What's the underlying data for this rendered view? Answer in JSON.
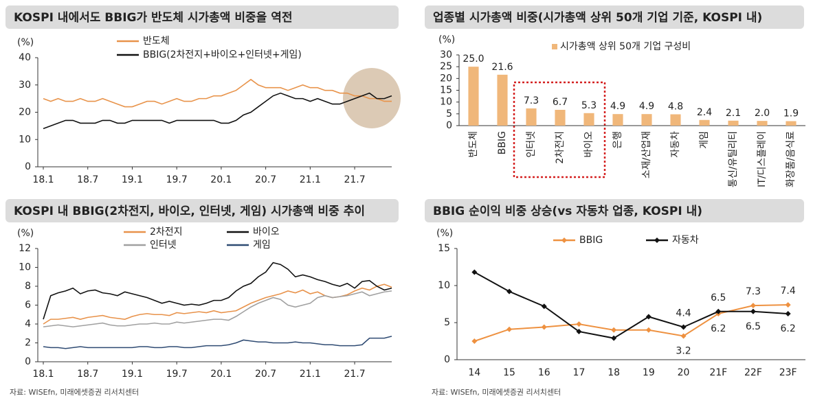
{
  "chart_data": [
    {
      "type": "line",
      "title": "KOSPI 내에서도 BBIG가 반도체 시가총액 비중을 역전",
      "y_unit": "(%)",
      "x": [
        "18.1",
        "18.2",
        "18.3",
        "18.4",
        "18.5",
        "18.6",
        "18.7",
        "18.8",
        "18.9",
        "18.10",
        "18.11",
        "18.12",
        "19.1",
        "19.2",
        "19.3",
        "19.4",
        "19.5",
        "19.6",
        "19.7",
        "19.8",
        "19.9",
        "19.10",
        "19.11",
        "19.12",
        "20.1",
        "20.2",
        "20.3",
        "20.4",
        "20.5",
        "20.6",
        "20.7",
        "20.8",
        "20.9",
        "20.10",
        "20.11",
        "20.12",
        "21.1",
        "21.2",
        "21.3",
        "21.4",
        "21.5",
        "21.6",
        "21.7",
        "21.8",
        "21.9",
        "21.10",
        "21.11",
        "21.12"
      ],
      "xticks": [
        "18.1",
        "18.7",
        "19.1",
        "19.7",
        "20.1",
        "20.7",
        "21.1",
        "21.7"
      ],
      "ylim": [
        0,
        40
      ],
      "yticks": [
        0,
        10,
        20,
        30,
        40
      ],
      "series": [
        {
          "name": "반도체",
          "color": "#e8934a",
          "values": [
            25,
            24,
            25,
            24,
            24,
            25,
            24,
            24,
            25,
            24,
            23,
            22,
            22,
            23,
            24,
            24,
            23,
            24,
            25,
            24,
            24,
            25,
            25,
            26,
            26,
            27,
            28,
            30,
            32,
            30,
            29,
            29,
            29,
            28,
            29,
            30,
            29,
            29,
            28,
            28,
            27,
            27,
            26,
            26,
            25,
            25,
            24,
            24
          ]
        },
        {
          "name": "BBIG(2차전지+바이오+인터넷+게임)",
          "color": "#111111",
          "values": [
            14,
            15,
            16,
            17,
            17,
            16,
            16,
            16,
            17,
            17,
            16,
            16,
            17,
            17,
            17,
            17,
            17,
            16,
            17,
            17,
            17,
            17,
            17,
            17,
            16,
            16,
            17,
            19,
            20,
            22,
            24,
            26,
            27,
            26,
            25,
            25,
            24,
            25,
            24,
            23,
            23,
            24,
            25,
            26,
            27,
            25,
            25,
            26
          ]
        }
      ]
    },
    {
      "type": "bar",
      "title": "업종별 시가총액 비중(시가총액 상위 50개 기업 기준, KOSPI 내)",
      "y_unit": "(%)",
      "categories": [
        "반도체",
        "BBIG",
        "인터넷",
        "2차전지",
        "바이오",
        "은행",
        "소재/산업재",
        "자동차",
        "게임",
        "통신/유틸리티",
        "IT/디스플레이",
        "화장품/음식료"
      ],
      "ylim": [
        0,
        30
      ],
      "yticks": [
        0,
        5,
        10,
        15,
        20,
        25,
        30
      ],
      "series": [
        {
          "name": "시가총액 상위 50개 기업 구성비",
          "color": "#f0b77a",
          "values": [
            25.0,
            21.6,
            7.3,
            6.7,
            5.3,
            4.9,
            4.9,
            4.8,
            2.4,
            2.1,
            2.0,
            1.9
          ],
          "value_labels": [
            "25.0",
            "21.6",
            "7.3",
            "6.7",
            "5.3",
            "4.9",
            "4.9",
            "4.8",
            "2.4",
            "2.1",
            "2.0",
            "1.9"
          ]
        }
      ]
    },
    {
      "type": "line",
      "title": "KOSPI 내 BBIG(2차전지, 바이오, 인터넷, 게임) 시가총액 비중 추이",
      "y_unit": "(%)",
      "source": "자료: WISEfn, 미래에셋증권 리서치센터",
      "x": [
        "18.1",
        "18.2",
        "18.3",
        "18.4",
        "18.5",
        "18.6",
        "18.7",
        "18.8",
        "18.9",
        "18.10",
        "18.11",
        "18.12",
        "19.1",
        "19.2",
        "19.3",
        "19.4",
        "19.5",
        "19.6",
        "19.7",
        "19.8",
        "19.9",
        "19.10",
        "19.11",
        "19.12",
        "20.1",
        "20.2",
        "20.3",
        "20.4",
        "20.5",
        "20.6",
        "20.7",
        "20.8",
        "20.9",
        "20.10",
        "20.11",
        "20.12",
        "21.1",
        "21.2",
        "21.3",
        "21.4",
        "21.5",
        "21.6",
        "21.7",
        "21.8",
        "21.9",
        "21.10",
        "21.11",
        "21.12"
      ],
      "xticks": [
        "18.1",
        "18.7",
        "19.1",
        "19.7",
        "20.1",
        "20.7",
        "21.1",
        "21.7"
      ],
      "ylim": [
        0,
        12
      ],
      "yticks": [
        0,
        2,
        4,
        6,
        8,
        10,
        12
      ],
      "series": [
        {
          "name": "2차전지",
          "color": "#e8924a",
          "values": [
            4,
            4.5,
            4.5,
            4.6,
            4.7,
            4.5,
            4.7,
            4.8,
            4.9,
            4.7,
            4.6,
            4.5,
            4.8,
            5,
            5.1,
            5,
            5,
            4.9,
            5.2,
            5.1,
            5.2,
            5.3,
            5.2,
            5.4,
            5.2,
            5.3,
            5.4,
            5.8,
            6.2,
            6.5,
            6.8,
            7,
            7.2,
            7.5,
            7.3,
            7.6,
            7.2,
            7.4,
            7,
            6.8,
            6.9,
            7.1,
            7.5,
            7.8,
            7.6,
            8,
            8.2,
            7.9
          ]
        },
        {
          "name": "바이오",
          "color": "#111111",
          "values": [
            4.5,
            7,
            7.3,
            7.5,
            7.8,
            7.2,
            7.5,
            7.6,
            7.3,
            7.2,
            7,
            7.4,
            7.2,
            7,
            6.8,
            6.5,
            6.2,
            6.4,
            6.2,
            6,
            6.1,
            6,
            6.2,
            6.5,
            6.5,
            6.8,
            7.5,
            8,
            8.3,
            9,
            9.5,
            10.5,
            10.3,
            9.8,
            9,
            9.2,
            9,
            8.7,
            8.5,
            8.2,
            8,
            8.3,
            7.8,
            8.5,
            8.6,
            8,
            7.6,
            7.8
          ]
        },
        {
          "name": "인터넷",
          "color": "#a0a0a0",
          "values": [
            3.7,
            3.8,
            3.9,
            3.8,
            3.7,
            3.8,
            3.9,
            4,
            4.1,
            3.9,
            3.8,
            3.8,
            3.9,
            4,
            4,
            4.1,
            4,
            4,
            4.2,
            4.1,
            4.2,
            4.3,
            4.4,
            4.5,
            4.5,
            4.4,
            4.8,
            5.3,
            5.8,
            6.2,
            6.5,
            6.8,
            6.6,
            6,
            5.8,
            6,
            6.2,
            6.8,
            7,
            6.8,
            6.9,
            7,
            7.2,
            7.4,
            7,
            7.2,
            7.4,
            7.5
          ]
        },
        {
          "name": "게임",
          "color": "#2e4a72",
          "values": [
            1.6,
            1.5,
            1.5,
            1.4,
            1.5,
            1.6,
            1.5,
            1.5,
            1.5,
            1.5,
            1.5,
            1.5,
            1.5,
            1.6,
            1.6,
            1.5,
            1.5,
            1.6,
            1.6,
            1.5,
            1.5,
            1.6,
            1.7,
            1.7,
            1.7,
            1.8,
            2,
            2.3,
            2.2,
            2.1,
            2.1,
            2,
            2,
            2,
            2.1,
            2,
            2,
            1.9,
            1.8,
            1.8,
            1.7,
            1.7,
            1.7,
            1.8,
            2.5,
            2.5,
            2.5,
            2.7
          ]
        }
      ]
    },
    {
      "type": "line",
      "title": "BBIG 순이익 비중 상승(vs 자동차 업종, KOSPI 내)",
      "y_unit": "(%)",
      "source": "자료: WISEfn, 미래에셋증권 리서치센터",
      "markers": "diamond",
      "categories": [
        "14",
        "15",
        "16",
        "17",
        "18",
        "19",
        "20",
        "21F",
        "22F",
        "23F"
      ],
      "ylim": [
        0,
        15
      ],
      "yticks": [
        0,
        5,
        10,
        15
      ],
      "series": [
        {
          "name": "BBIG",
          "color": "#ee9140",
          "values": [
            2.5,
            4.1,
            4.4,
            4.8,
            4.0,
            4.0,
            3.2,
            6.2,
            7.3,
            7.4
          ],
          "value_labels": [
            null,
            null,
            null,
            null,
            null,
            null,
            "3.2",
            "6.2",
            "7.3",
            "7.4"
          ]
        },
        {
          "name": "자동차",
          "color": "#111111",
          "values": [
            11.8,
            9.2,
            7.2,
            3.8,
            2.9,
            5.8,
            4.4,
            6.5,
            6.5,
            6.2
          ],
          "value_labels": [
            null,
            null,
            null,
            null,
            null,
            null,
            "4.4",
            "6.5",
            "6.5",
            "6.2"
          ]
        }
      ]
    }
  ]
}
